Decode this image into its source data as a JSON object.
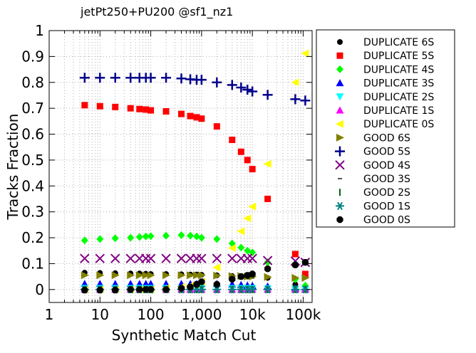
{
  "chart_data": {
    "type": "scatter",
    "title": "jetPt250+PU200 @sf1_nz1",
    "xlabel": "Synthetic Match Cut",
    "ylabel": "Tracks Fraction",
    "xscale": "log",
    "xlim": [
      1,
      150000
    ],
    "ylim": [
      -0.05,
      1.0
    ],
    "xticks": [
      {
        "value": 1,
        "label": "1"
      },
      {
        "value": 10,
        "label": "10"
      },
      {
        "value": 100,
        "label": "100"
      },
      {
        "value": 1000,
        "label": "1,000"
      },
      {
        "value": 10000,
        "label": "10k"
      },
      {
        "value": 100000,
        "label": "100k"
      }
    ],
    "yticks": [
      {
        "value": 0,
        "label": "0"
      },
      {
        "value": 0.1,
        "label": "0.1"
      },
      {
        "value": 0.2,
        "label": "0.2"
      },
      {
        "value": 0.3,
        "label": "0.3"
      },
      {
        "value": 0.4,
        "label": "0.4"
      },
      {
        "value": 0.5,
        "label": "0.5"
      },
      {
        "value": 0.6,
        "label": "0.6"
      },
      {
        "value": 0.7,
        "label": "0.7"
      },
      {
        "value": 0.8,
        "label": "0.8"
      },
      {
        "value": 0.9,
        "label": "0.9"
      },
      {
        "value": 1.0,
        "label": "1"
      }
    ],
    "grid": true,
    "legend_position": "outside-right",
    "x": [
      5,
      10,
      20,
      40,
      60,
      80,
      100,
      200,
      400,
      600,
      800,
      1000,
      2000,
      4000,
      6000,
      8000,
      10000,
      20000,
      70000,
      110000
    ],
    "series": [
      {
        "name": "DUPLICATE 6S",
        "marker": "circle",
        "color": "#000000",
        "values": [
          0.065,
          0.064,
          0.063,
          0.062,
          0.062,
          0.061,
          0.06,
          0.06,
          0.059,
          0.058,
          0.058,
          0.057,
          0.055,
          0.052,
          0.05,
          0.05,
          0.052,
          0.045,
          0.02,
          0.01
        ]
      },
      {
        "name": "DUPLICATE 5S",
        "marker": "square",
        "color": "#ff0000",
        "values": [
          0.712,
          0.708,
          0.705,
          0.7,
          0.697,
          0.695,
          0.692,
          0.688,
          0.678,
          0.67,
          0.665,
          0.66,
          0.63,
          0.578,
          0.532,
          0.5,
          0.465,
          0.35,
          0.137,
          0.06
        ]
      },
      {
        "name": "DUPLICATE 4S",
        "marker": "diamond",
        "color": "#00ff00",
        "values": [
          0.19,
          0.195,
          0.198,
          0.2,
          0.203,
          0.205,
          0.206,
          0.208,
          0.21,
          0.208,
          0.205,
          0.2,
          0.195,
          0.178,
          0.162,
          0.15,
          0.143,
          0.105,
          0.04,
          0.015
        ]
      },
      {
        "name": "DUPLICATE 3S",
        "marker": "triangle-up",
        "color": "#0000ff",
        "values": [
          0.022,
          0.022,
          0.022,
          0.022,
          0.022,
          0.022,
          0.022,
          0.022,
          0.022,
          0.022,
          0.022,
          0.022,
          0.022,
          0.02,
          0.018,
          0.016,
          0.015,
          0.012,
          0.005,
          0.002
        ]
      },
      {
        "name": "DUPLICATE 2S",
        "marker": "triangle-down",
        "color": "#00ffff",
        "values": [
          0.005,
          0.005,
          0.005,
          0.005,
          0.005,
          0.005,
          0.005,
          0.005,
          0.005,
          0.005,
          0.005,
          0.005,
          0.005,
          0.005,
          0.005,
          0.005,
          0.005,
          0.004,
          0.002,
          0.001
        ]
      },
      {
        "name": "DUPLICATE 1S",
        "marker": "triangle-up",
        "color": "#ff00ff",
        "values": [
          0.0,
          0.0,
          0.0,
          0.0,
          0.0,
          0.0,
          0.0,
          0.0,
          0.0,
          0.0,
          0.0,
          0.0,
          0.0,
          0.0,
          0.0,
          0.0,
          0.0,
          0.0,
          0.0,
          0.0
        ]
      },
      {
        "name": "DUPLICATE 0S",
        "marker": "triangle-left",
        "color": "#ffff00",
        "values": [
          0.0,
          0.0,
          0.0,
          0.0,
          0.0,
          0.0,
          0.0,
          0.005,
          0.01,
          0.015,
          0.02,
          0.03,
          0.085,
          0.16,
          0.225,
          0.275,
          0.32,
          0.485,
          0.8,
          0.912
        ]
      },
      {
        "name": "GOOD 6S",
        "marker": "triangle-right",
        "color": "#808000",
        "values": [
          0.055,
          0.055,
          0.055,
          0.055,
          0.055,
          0.055,
          0.055,
          0.055,
          0.055,
          0.055,
          0.055,
          0.055,
          0.054,
          0.052,
          0.052,
          0.05,
          0.05,
          0.048,
          0.045,
          0.045
        ]
      },
      {
        "name": "GOOD 5S",
        "marker": "plus",
        "color": "#00008b",
        "values": [
          0.818,
          0.818,
          0.818,
          0.818,
          0.818,
          0.818,
          0.818,
          0.818,
          0.815,
          0.812,
          0.81,
          0.81,
          0.8,
          0.79,
          0.78,
          0.772,
          0.765,
          0.752,
          0.735,
          0.73
        ]
      },
      {
        "name": "GOOD 4S",
        "marker": "cross",
        "color": "#800080",
        "values": [
          0.12,
          0.12,
          0.12,
          0.12,
          0.12,
          0.12,
          0.12,
          0.12,
          0.12,
          0.12,
          0.12,
          0.12,
          0.12,
          0.12,
          0.12,
          0.12,
          0.12,
          0.112,
          0.11,
          0.105
        ]
      },
      {
        "name": "GOOD 3S",
        "marker": "hline",
        "color": "#1a1a1a",
        "values": [
          0.0,
          0.0,
          0.0,
          0.0,
          0.0,
          0.0,
          0.0,
          0.0,
          0.0,
          0.0,
          0.0,
          0.0,
          0.0,
          0.0,
          0.0,
          0.0,
          0.0,
          0.0,
          0.0,
          0.0
        ]
      },
      {
        "name": "GOOD 2S",
        "marker": "vline",
        "color": "#006400",
        "values": [
          0.0,
          0.0,
          0.0,
          0.0,
          0.0,
          0.0,
          0.0,
          0.0,
          0.0,
          0.0,
          0.0,
          0.0,
          0.0,
          0.0,
          0.0,
          0.0,
          0.0,
          0.0,
          0.0,
          0.0
        ]
      },
      {
        "name": "GOOD 1S",
        "marker": "asterisk",
        "color": "#008080",
        "values": [
          0.0,
          0.0,
          0.0,
          0.0,
          0.0,
          0.0,
          0.0,
          0.0,
          0.0,
          0.0,
          0.0,
          0.0,
          0.0,
          0.0,
          0.0,
          0.0,
          0.0,
          0.0,
          0.0,
          0.0
        ]
      },
      {
        "name": "GOOD 0S",
        "marker": "octagon",
        "color": "#000000",
        "values": [
          -0.002,
          -0.002,
          -0.002,
          0.0,
          0.0,
          0.0,
          0.0,
          0.0,
          0.005,
          0.01,
          0.02,
          0.03,
          0.02,
          0.04,
          0.05,
          0.055,
          0.06,
          0.08,
          0.095,
          0.105
        ]
      }
    ]
  }
}
